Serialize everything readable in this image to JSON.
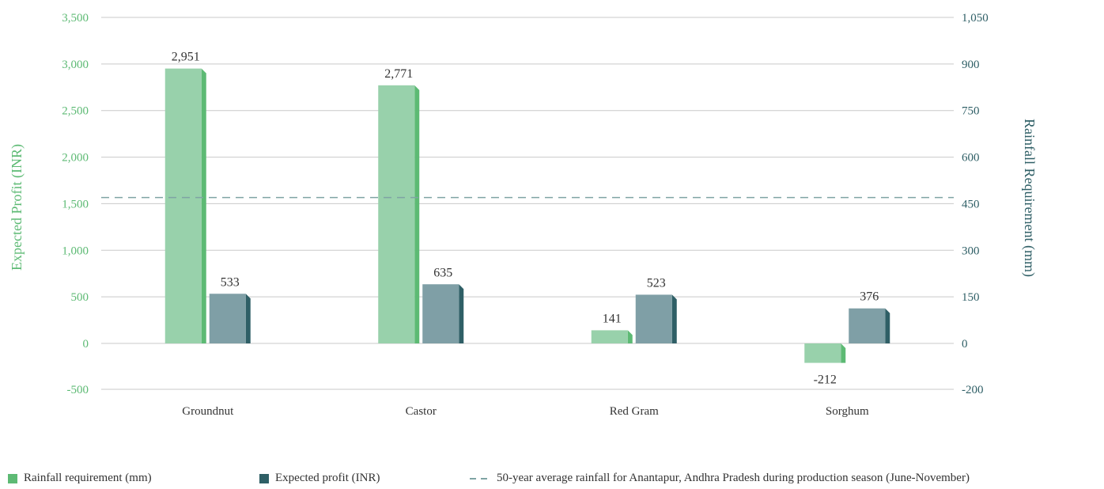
{
  "chart_data": {
    "type": "bar",
    "categories": [
      "Groundnut",
      "Castor",
      "Red Gram",
      "Sorghum"
    ],
    "series": [
      {
        "name": "Rainfall requirement (mm)",
        "values": [
          2951,
          2771,
          141,
          -212
        ],
        "color": "#98d1ab",
        "side_color": "#5dba74"
      },
      {
        "name": "Expected profit (INR)",
        "values": [
          533,
          635,
          523,
          376
        ],
        "color": "#7f9fa6",
        "side_color": "#2f5f66"
      }
    ],
    "reference_line": {
      "name": "50-year average rainfall for Anantapur, Andhra Pradesh during production season (June-November)",
      "value": 470,
      "axis": "right",
      "color": "#7fa4a4"
    },
    "left_axis": {
      "label": "Expected Profit (INR)",
      "ticks": [
        3500,
        3000,
        2500,
        2000,
        1500,
        1000,
        500,
        0,
        -500
      ],
      "tick_labels": [
        "3,500",
        "3,000",
        "2,500",
        "2,000",
        "1,500",
        "1,000",
        "500",
        "0",
        "-500"
      ],
      "ylim": [
        -500,
        3500
      ],
      "color": "#5dba74"
    },
    "right_axis": {
      "label": "Rainfall Requirement (mm)",
      "ticks": [
        1050,
        900,
        750,
        600,
        450,
        300,
        150,
        0,
        -200
      ],
      "tick_labels": [
        "1,050",
        "900",
        "750",
        "600",
        "450",
        "300",
        "150",
        "0",
        "-200"
      ],
      "ylim": [
        -150,
        1050
      ],
      "color": "#2f5f66"
    },
    "data_labels": {
      "series0": [
        "2,951",
        "2,771",
        "141",
        "-212"
      ],
      "series1": [
        "533",
        "635",
        "523",
        "376"
      ]
    },
    "grid": true,
    "legend_position": "bottom"
  }
}
